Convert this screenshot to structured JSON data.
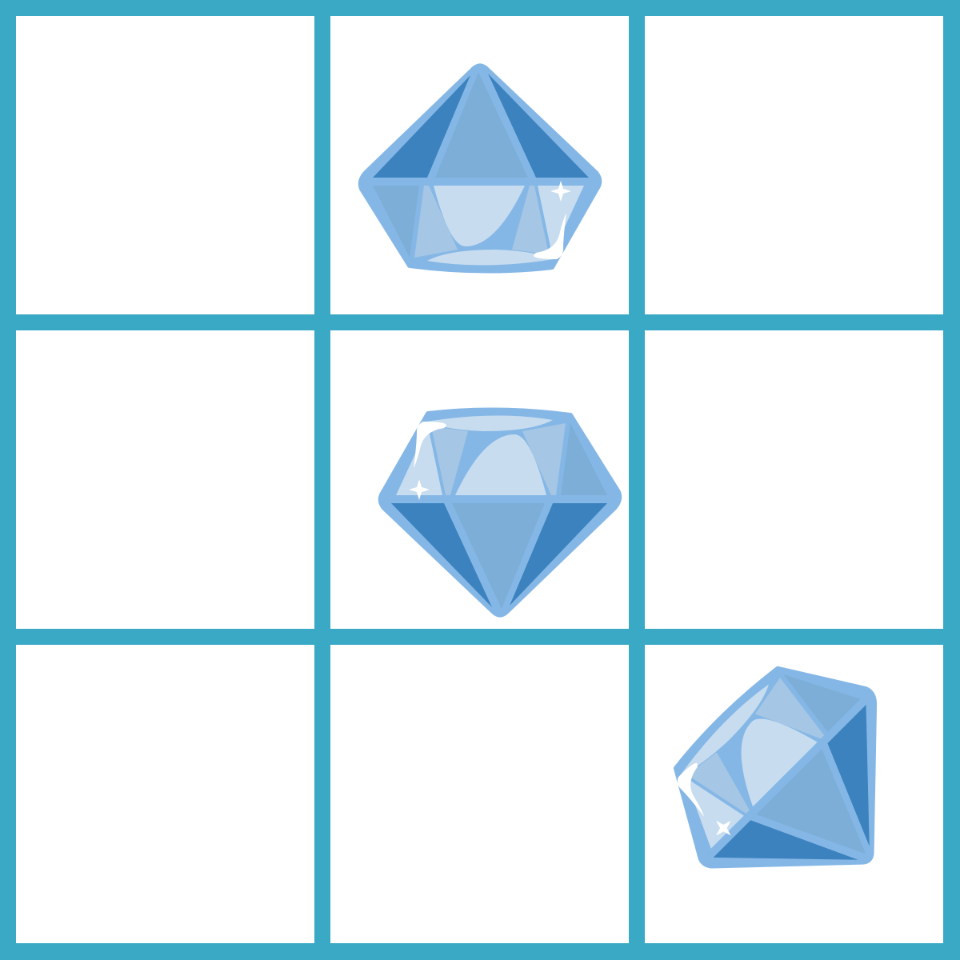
{
  "board": {
    "rows": 3,
    "columns": 3,
    "grid_color": "#3aa9c6",
    "cell_color": "#ffffff",
    "cells": [
      {
        "row": 1,
        "col": 1,
        "content": "empty"
      },
      {
        "row": 1,
        "col": 2,
        "content": "diamond",
        "icon": "diamond-icon",
        "orientation": "upside-down"
      },
      {
        "row": 1,
        "col": 3,
        "content": "empty"
      },
      {
        "row": 2,
        "col": 1,
        "content": "empty"
      },
      {
        "row": 2,
        "col": 2,
        "content": "diamond",
        "icon": "diamond-icon",
        "orientation": "upright"
      },
      {
        "row": 2,
        "col": 3,
        "content": "empty"
      },
      {
        "row": 3,
        "col": 1,
        "content": "empty"
      },
      {
        "row": 3,
        "col": 2,
        "content": "empty"
      },
      {
        "row": 3,
        "col": 3,
        "content": "diamond",
        "icon": "diamond-icon",
        "orientation": "rotated-left"
      }
    ]
  },
  "diamond_colors": {
    "outline": "#85b7e6",
    "dark": "#3c82be",
    "mid": "#7daed8",
    "light": "#a5c6e4",
    "pale": "#c7dcef",
    "sparkle": "#ffffff"
  }
}
